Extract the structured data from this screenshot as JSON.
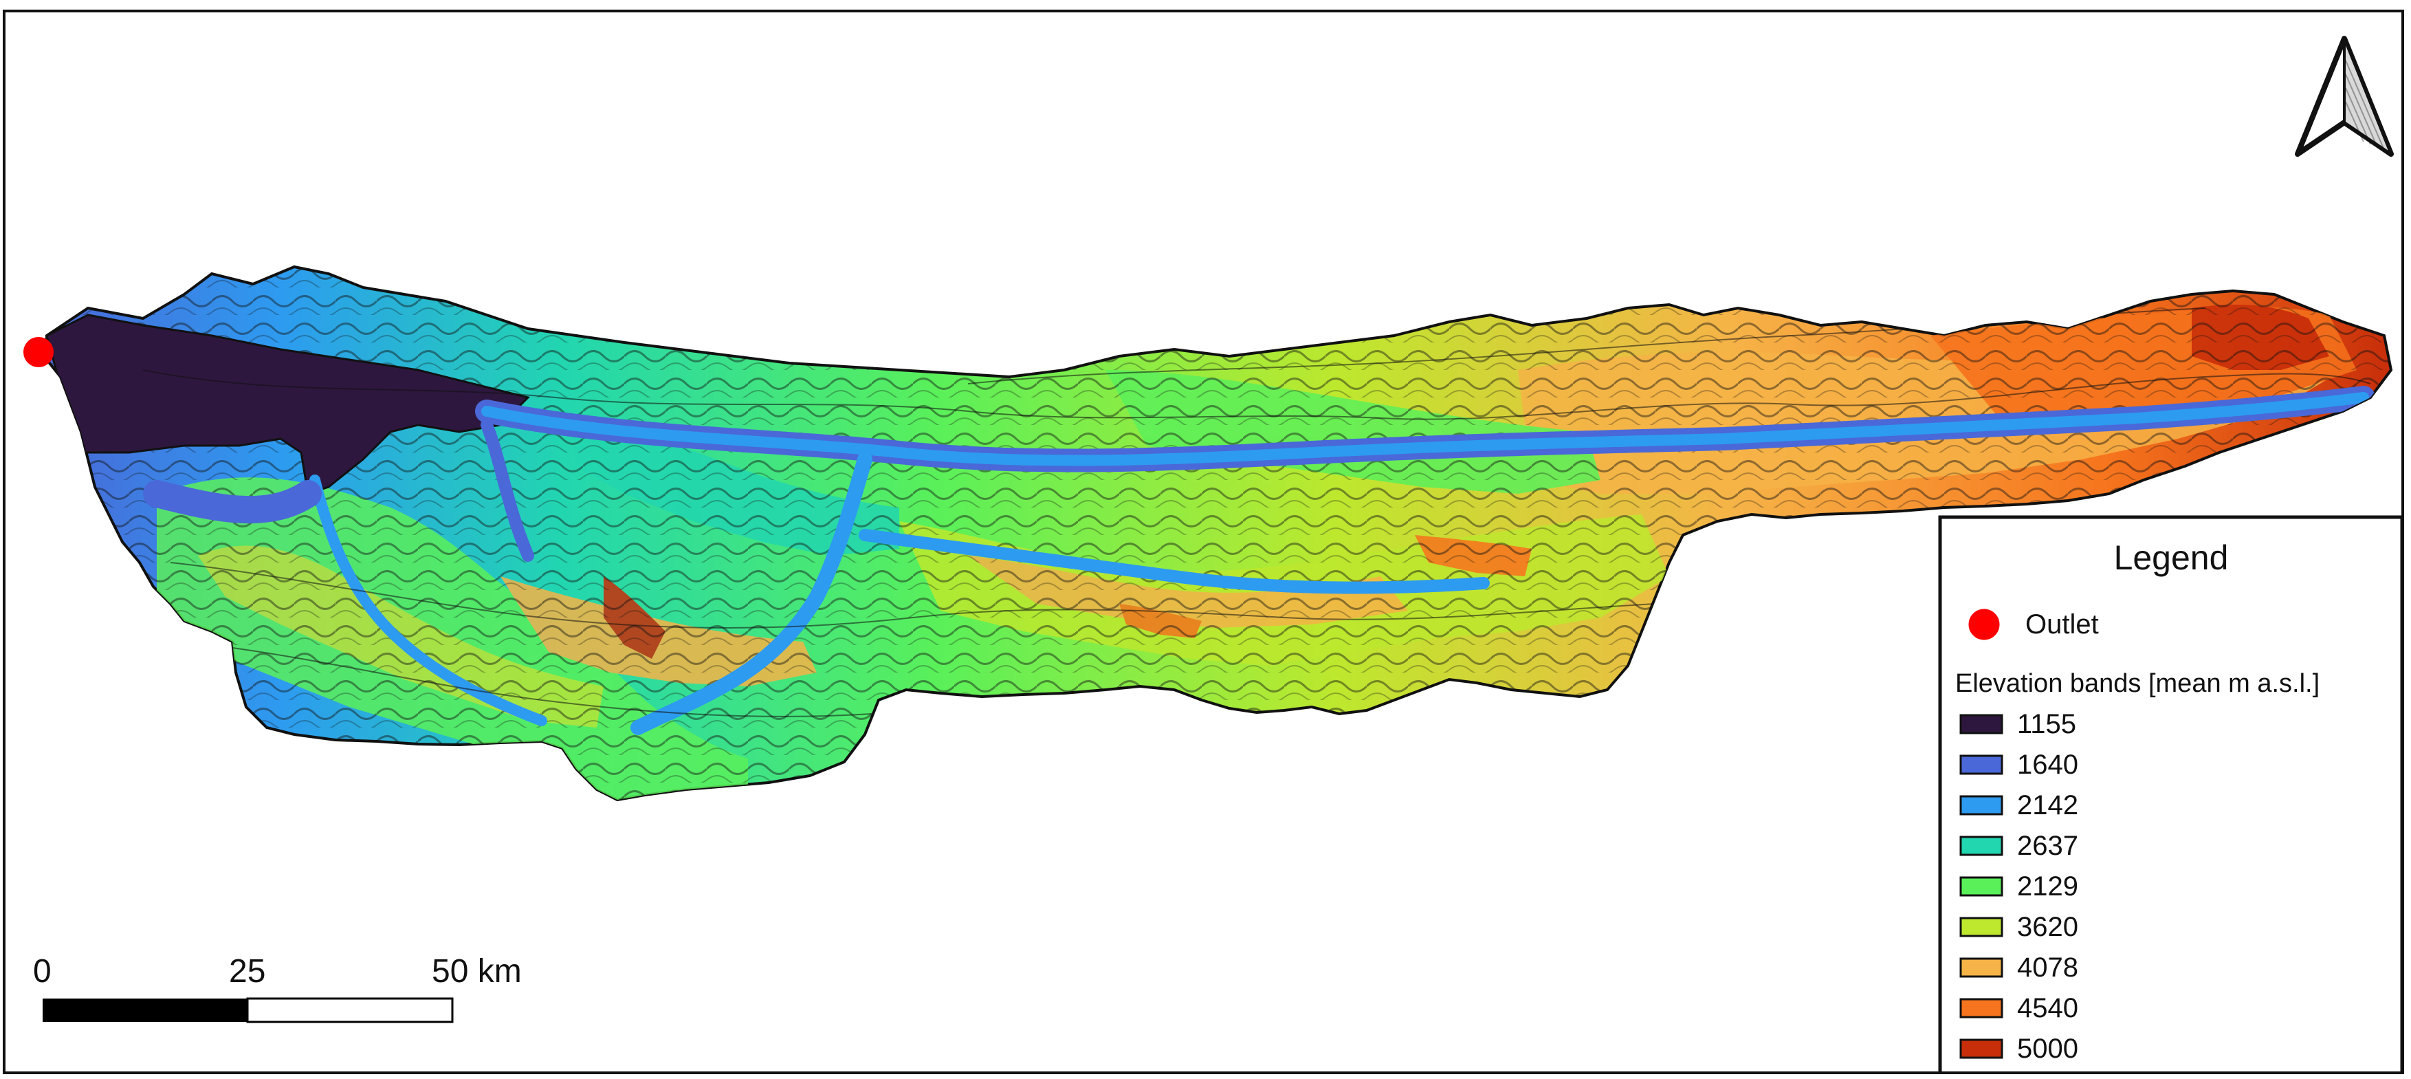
{
  "legend": {
    "title": "Legend",
    "outlet_label": "Outlet",
    "outlet_color": "#ff0000",
    "elevation_title": "Elevation bands [mean m a.s.l.]",
    "bands": [
      {
        "label": "1155",
        "color": "#2e173f"
      },
      {
        "label": "1640",
        "color": "#4a68d8"
      },
      {
        "label": "2142",
        "color": "#2d9bf0"
      },
      {
        "label": "2637",
        "color": "#22d6b0"
      },
      {
        "label": "2129",
        "color": "#5af05a"
      },
      {
        "label": "3620",
        "color": "#bde82e"
      },
      {
        "label": "4078",
        "color": "#f6b347"
      },
      {
        "label": "4540",
        "color": "#f6741d"
      },
      {
        "label": "5000",
        "color": "#c82e0a"
      }
    ]
  },
  "scale_bar": {
    "labels": [
      "0",
      "25",
      "50 km"
    ]
  },
  "north_arrow": {
    "icon": "north-arrow-icon"
  }
}
